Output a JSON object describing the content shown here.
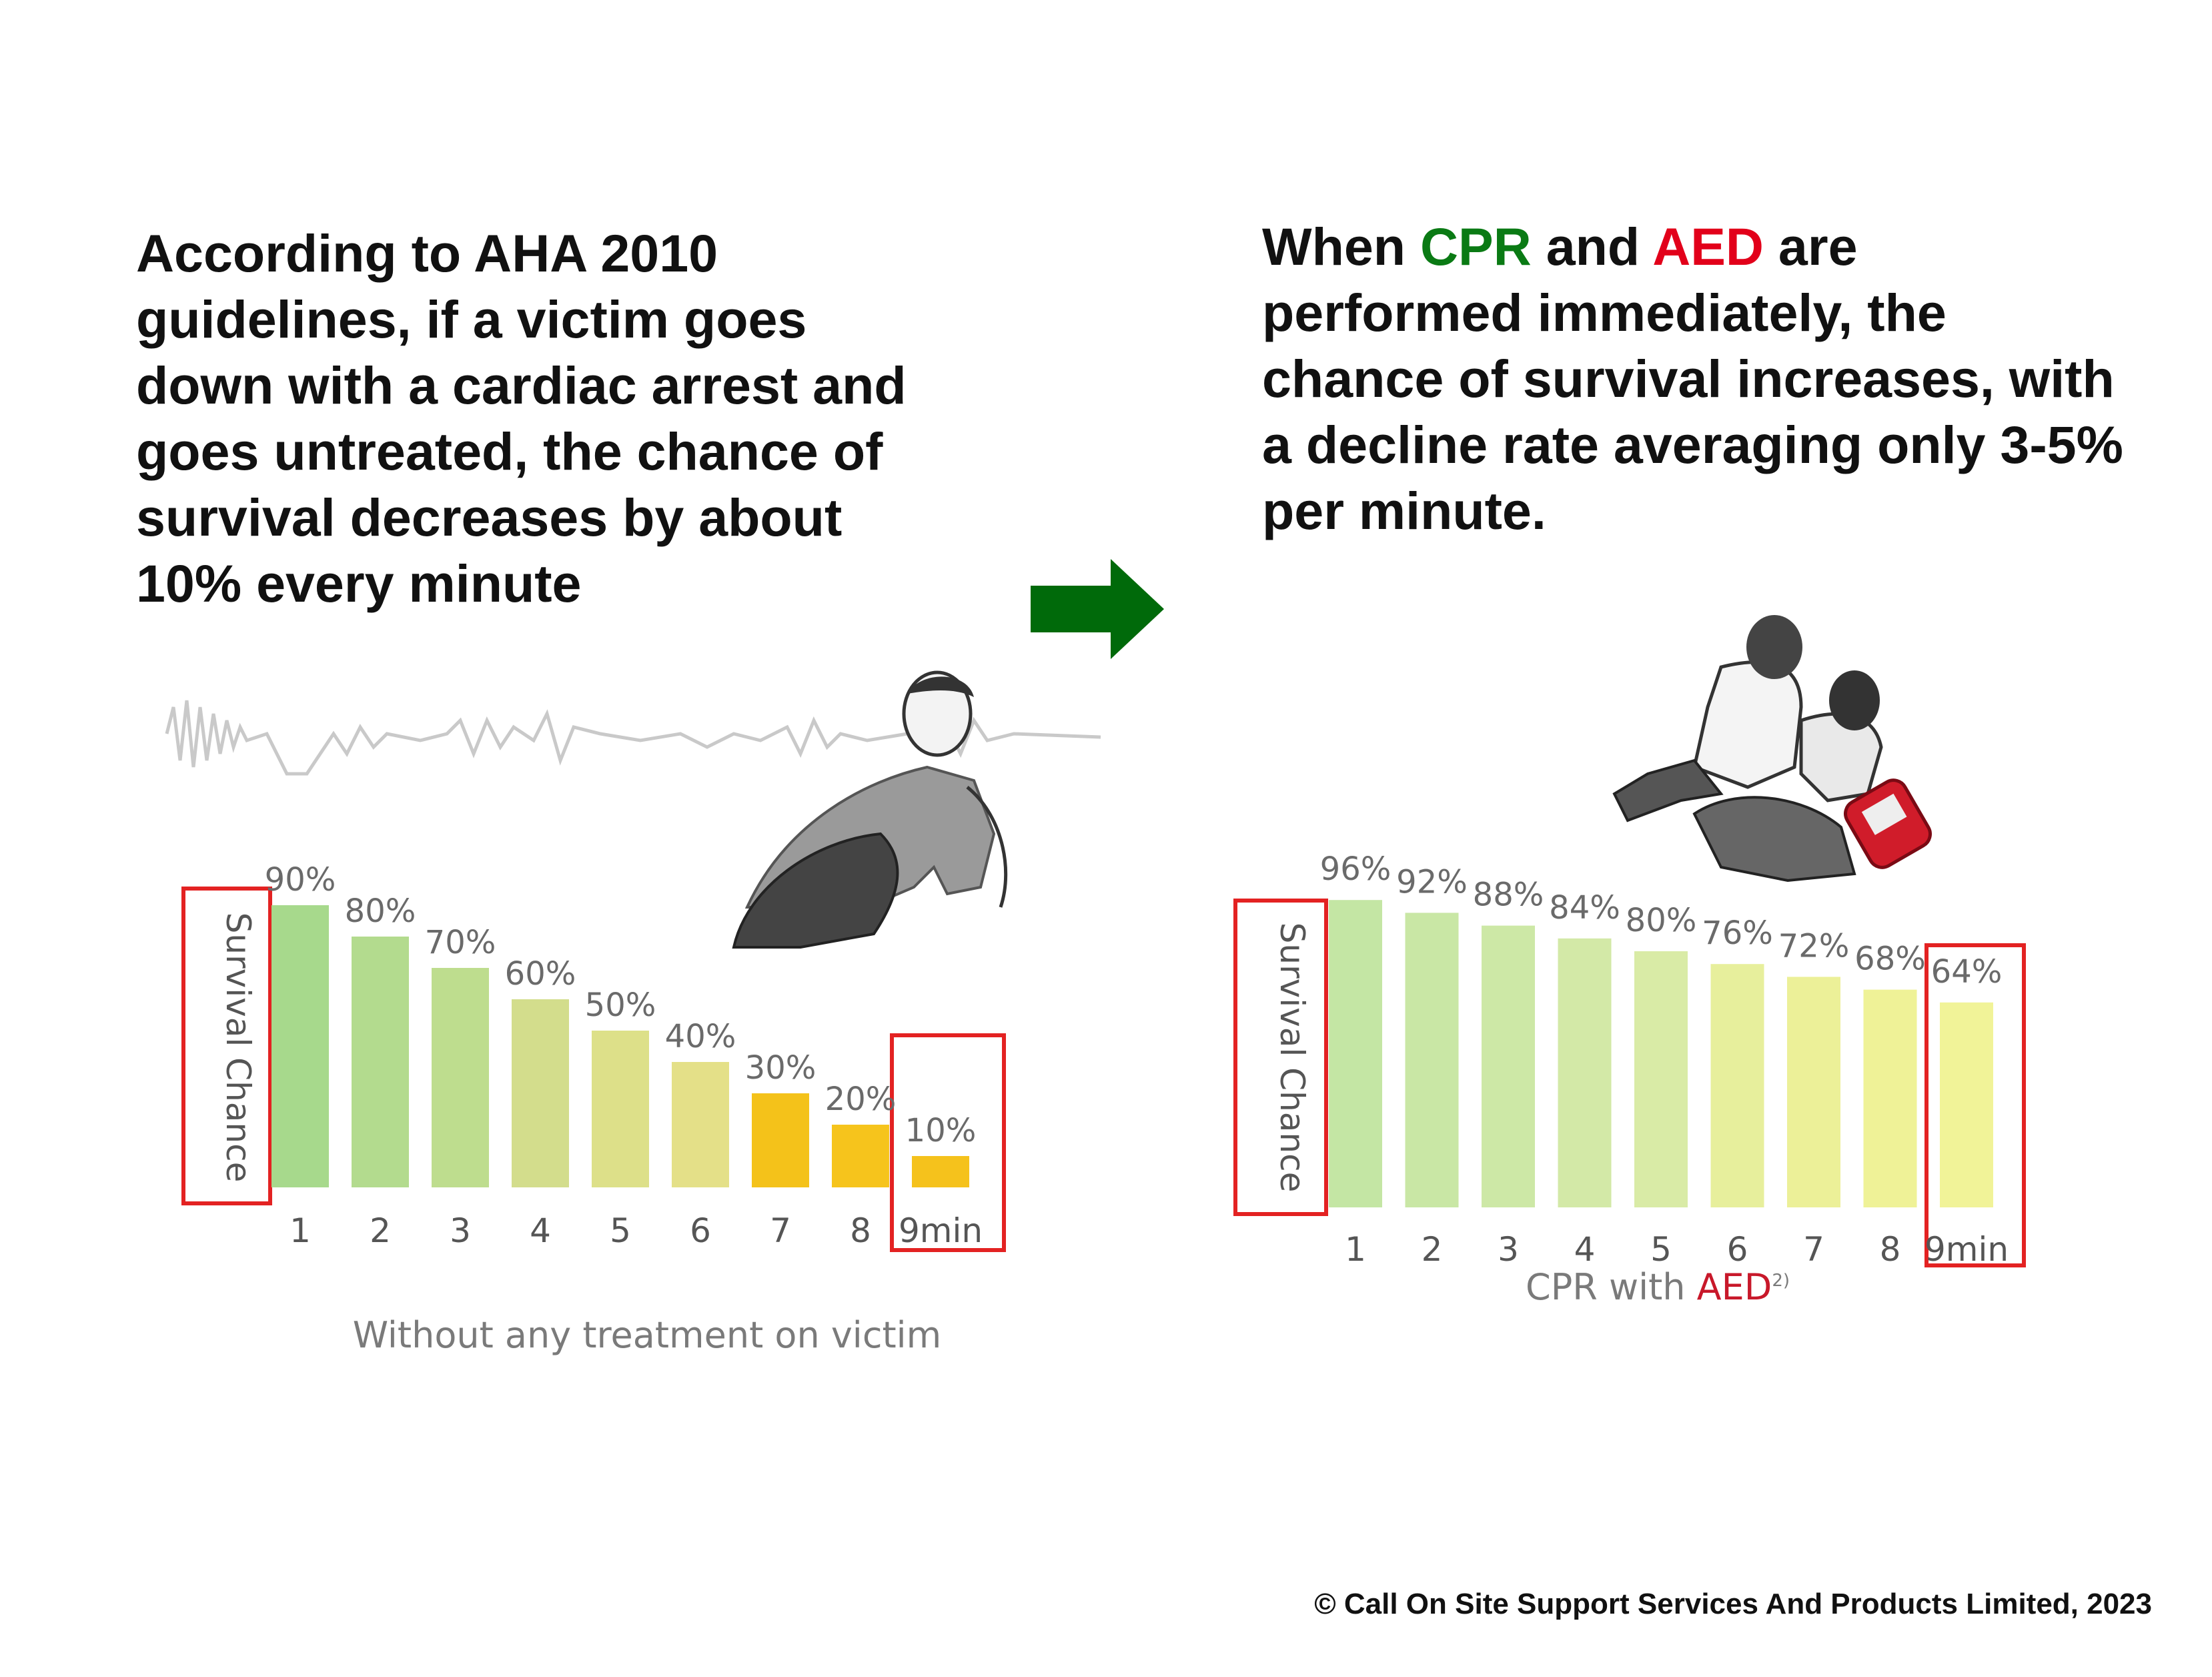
{
  "left_text": "According to AHA 2010 guidelines, if a victim goes down with a cardiac arrest and goes untreated, the chance of survival decreases by about 10% every minute",
  "right_text": {
    "part1": "When ",
    "cpr": "CPR",
    "part2": " and ",
    "aed": "AED",
    "part3": " are performed immediately, the chance of survival increases, with a decline rate averaging only 3-5% per minute."
  },
  "copyright": "© Call On Site Support Services And Products Limited, 2023",
  "colors": {
    "cpr": "#0a7a14",
    "aed": "#e2001a",
    "arrow": "#006a0a",
    "highlight_box": "#e32222"
  },
  "icons": [
    "right-arrow-icon",
    "ecg-wave-icon",
    "collapsed-victim-illustration",
    "cpr-aed-rescuers-illustration"
  ],
  "chart_data": [
    {
      "type": "bar",
      "categories": [
        "1",
        "2",
        "3",
        "4",
        "5",
        "6",
        "7",
        "8",
        "9min"
      ],
      "values": [
        90,
        80,
        70,
        60,
        50,
        40,
        30,
        20,
        10
      ],
      "data_labels": [
        "90%",
        "80%",
        "70%",
        "60%",
        "50%",
        "40%",
        "30%",
        "20%",
        "10%"
      ],
      "ylabel": "Survival Chance",
      "caption": "Without any treatment on victim",
      "unit": "%",
      "bar_colors": [
        "#a7d98c",
        "#b3db8e",
        "#bedd8e",
        "#d3dd8c",
        "#dde089",
        "#e4e088",
        "#f4c21a",
        "#f6c41c",
        "#f5c21c"
      ],
      "highlight": "9min"
    },
    {
      "type": "bar",
      "categories": [
        "1",
        "2",
        "3",
        "4",
        "5",
        "6",
        "7",
        "8",
        "9min"
      ],
      "values": [
        96,
        92,
        88,
        84,
        80,
        76,
        72,
        68,
        64
      ],
      "data_labels": [
        "96%",
        "92%",
        "88%",
        "84%",
        "80%",
        "76%",
        "72%",
        "68%",
        "64%"
      ],
      "ylabel": "Survival Chance",
      "caption": {
        "prefix": "CPR with ",
        "highlight": "AED",
        "suffix": "2)"
      },
      "unit": "%",
      "bar_colors": [
        "#c4e6a4",
        "#c9e7a5",
        "#cde8a6",
        "#d3e9a7",
        "#d9eba6",
        "#e7ef9c",
        "#ecf098",
        "#eff297",
        "#f1f398"
      ],
      "highlight": "9min"
    }
  ]
}
